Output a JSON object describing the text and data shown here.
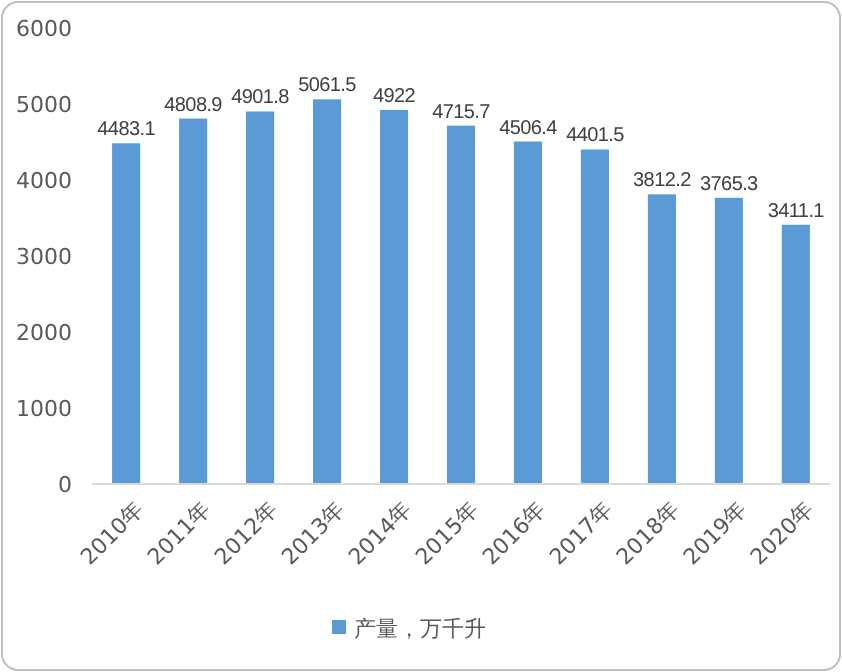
{
  "chart_data": {
    "type": "bar",
    "categories": [
      "2010年",
      "2011年",
      "2012年",
      "2013年",
      "2014年",
      "2015年",
      "2016年",
      "2017年",
      "2018年",
      "2019年",
      "2020年"
    ],
    "series": [
      {
        "name": "产量，万千升",
        "color": "#5b9bd5",
        "values": [
          4483.1,
          4808.9,
          4901.8,
          5061.5,
          4922,
          4715.7,
          4506.4,
          4401.5,
          3812.2,
          3765.3,
          3411.1
        ]
      }
    ],
    "ylim": [
      0,
      6000
    ],
    "yticks": [
      0,
      1000,
      2000,
      3000,
      4000,
      5000,
      6000
    ],
    "grid": false,
    "legend": "bottom",
    "data_labels": true
  }
}
